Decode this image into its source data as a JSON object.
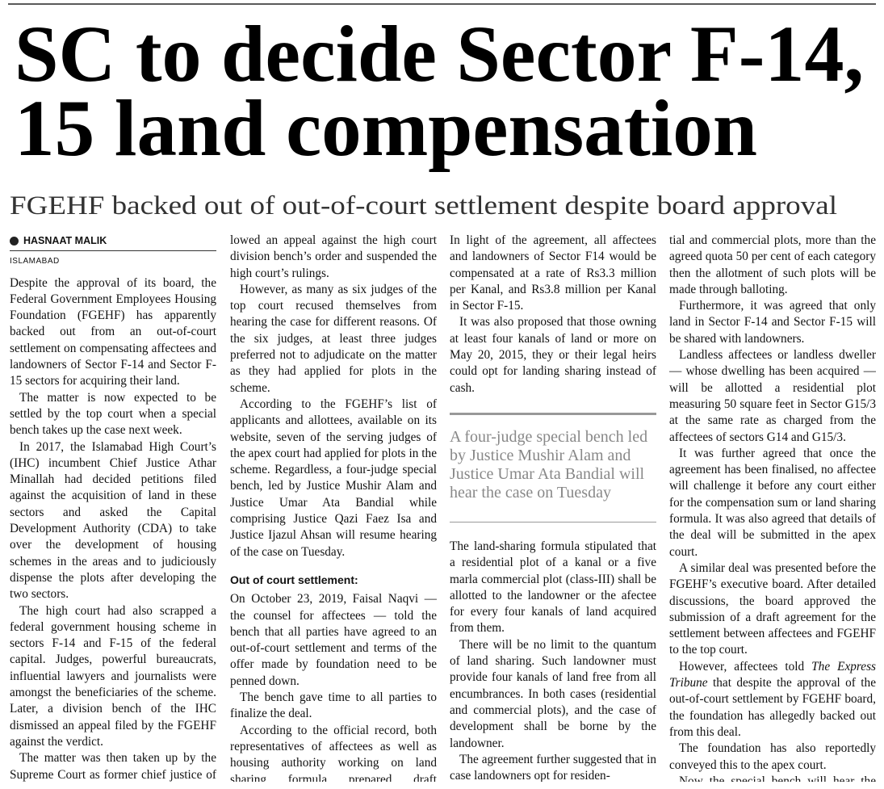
{
  "headline": {
    "title": [
      "SC to decide Sector F-14,",
      "15 land compensation"
    ],
    "subtitle": "FGEHF backed out of out-of-court settlement despite board approval"
  },
  "byline": {
    "author": "HASNAAT MALIK",
    "dateline": "ISLAMABAD"
  },
  "columns": [
    {
      "paragraphs": [
        "Despite the approval of its board, the Federal Government Employees Housing Foundation (FGEHF) has apparently backed out from an out-of-court settlement on compensating affectees and landowners of Sector F-14 and Sector F-15 sectors for acquiring their land.",
        "The matter is now expected to be settled by the top court when a special bench takes up the case next week.",
        "In 2017, the Islamabad High Court’s (IHC) incumbent Chief Justice Athar Minallah had decided petitions filed against the acquisition of land in these sectors and asked the Capital Development Authority (CDA) to take over the development of housing schemes in the areas and to judiciously dispense the plots after developing the two sectors.",
        "The high court had also scrapped a federal government housing scheme in sectors F-14 and F-15 of the federal capital. Judges, powerful bureaucrats, influential lawyers and journalists were amongst the beneficiaries of the scheme. Later, a division bench of the IHC dismissed an appeal filed by the FGEHF against the verdict.",
        "The matter was then taken up by the Supreme Court as former chief justice of Pakistan (CJP) Mian Saqib Nisar al-"
      ]
    },
    {
      "paragraphs": [
        "lowed an appeal against the high court division bench’s order and suspended the high court’s rulings.",
        "However, as many as six judges of the top court recused themselves from hearing the case for different reasons. Of the six judges, at least three judges preferred not to adjudicate on the matter as they had applied for plots in the scheme.",
        "According to the FGEHF’s list of applicants and allottees, available on its website, seven of the serving judges of the apex court had applied for plots in the scheme. Regardless, a four-judge special bench, led by Justice Mushir Alam and Justice Umar Ata Bandial while comprising Justice Qazi Faez Isa and Justice Ijazul Ahsan will resume hearing of the case on Tuesday."
      ],
      "subheading": "Out of court settlement:",
      "paragraphs_after": [
        "On October 23, 2019, Faisal Naqvi — the counsel for affectees — told the bench that all parties have agreed to an out-of-court settlement and terms of the offer made by foundation need to be penned down.",
        "The bench gave time to all parties to finalize the deal.",
        "According to the official record, both representatives of affectees as well as housing authority working on land sharing formula prepared draft agreement."
      ]
    },
    {
      "paragraphs": [
        "In light of the agreement, all affectees and landowners of Sector F14 would be compensated at a rate of Rs3.3 million per Kanal, and Rs3.8 million per Kanal in Sector F-15.",
        "It was also proposed that those owning at least four kanals of land or more on May 20, 2015, they or their legal heirs could opt for landing sharing instead of cash."
      ],
      "pull_quote": "A four-judge special bench led by Justice Mushir Alam and Justice Umar Ata Bandial will hear the case on Tuesday",
      "paragraphs_after": [
        "The land-sharing formula stipulated that a residential plot of a kanal or a five marla commercial plot (class-III) shall be allotted to the landowner or the afectee for every four kanals of land acquired from them.",
        "There will be no limit to the quantum of land sharing. Such landowner must provide four kanals of land free from all encumbrances. In both cases (residential and commercial plots), and the case of development shall be borne by the landowner.",
        "The agreement further suggested that in case landowners opt for residen-"
      ]
    },
    {
      "paragraphs": [
        "tial and commercial plots, more than the agreed quota 50 per cent of each category then the allotment of such plots will be made through balloting.",
        "Furthermore, it was agreed that only land in Sector F-14 and Sector F-15 will be shared with landowners.",
        "Landless affectees or landless dweller — whose dwelling has been acquired — will be allotted a residential plot measuring 50 square feet in Sector G15/3 at the same rate as charged from the affectees of sectors G14 and G15/3.",
        "It was further agreed that once the agreement has been finalised, no affectee will challenge it before any court either for the compensation sum or land sharing formula. It was also agreed that details of the deal will be submitted in the apex court.",
        "A similar deal was presented before the FGEHF’s executive board. After detailed discussions, the board approved the submission of a draft agreement for the settlement between affectees and FGEHF to the top court.",
        [
          "However, affectees told ",
          "The Express Tribune",
          " that despite the approval of the out-of-court settlement by FGEHF board, the foundation has allegedly backed out from this deal."
        ],
        "The foundation has also reportedly conveyed this to the apex court.",
        "Now the special bench will hear the case on the merit from Tuesday."
      ]
    }
  ]
}
